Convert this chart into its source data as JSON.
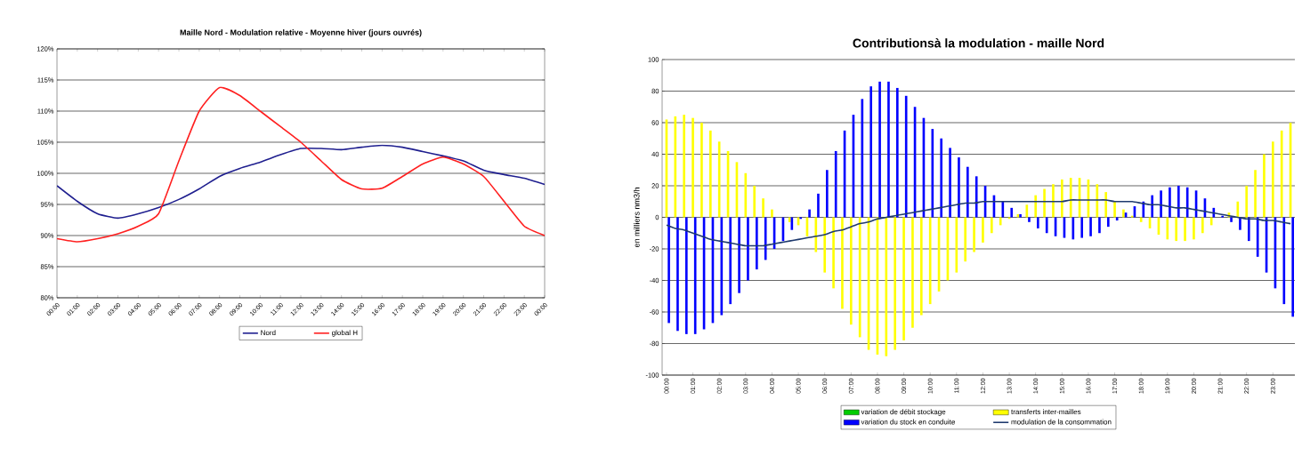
{
  "chart_data": [
    {
      "type": "line",
      "title": "Maille Nord - Modulation relative - Moyenne hiver (jours ouvrés)",
      "categories": [
        "00:00",
        "01:00",
        "02:00",
        "03:00",
        "04:00",
        "05:00",
        "06:00",
        "07:00",
        "08:00",
        "09:00",
        "10:00",
        "11:00",
        "12:00",
        "13:00",
        "14:00",
        "15:00",
        "16:00",
        "17:00",
        "18:00",
        "19:00",
        "20:00",
        "21:00",
        "22:00",
        "23:00",
        "00:00"
      ],
      "series": [
        {
          "name": "Nord",
          "color": "#1f1f8f",
          "values": [
            98,
            95.5,
            93.5,
            92.8,
            93.5,
            94.5,
            95.8,
            97.5,
            99.5,
            100.8,
            101.8,
            103,
            104,
            104,
            103.8,
            104.2,
            104.5,
            104.2,
            103.5,
            102.8,
            102,
            100.5,
            99.8,
            99.2,
            98.2
          ]
        },
        {
          "name": "global H",
          "color": "#ff2020",
          "values": [
            89.5,
            89,
            89.5,
            90.3,
            91.5,
            93.5,
            102,
            110,
            113.8,
            112.5,
            110,
            107.5,
            105,
            102,
            99,
            97.5,
            97.6,
            99.5,
            101.5,
            102.6,
            101.5,
            99.5,
            95.5,
            91.5,
            90
          ]
        }
      ],
      "ylim": [
        80,
        120
      ],
      "yticks": [
        {
          "value": 80,
          "label": "80%"
        },
        {
          "value": 85,
          "label": "85%"
        },
        {
          "value": 90,
          "label": "90%"
        },
        {
          "value": 95,
          "label": "95%"
        },
        {
          "value": 100,
          "label": "100%"
        },
        {
          "value": 105,
          "label": "105%"
        },
        {
          "value": 110,
          "label": "110%"
        },
        {
          "value": 115,
          "label": "115%"
        },
        {
          "value": 120,
          "label": "120%"
        }
      ],
      "grid": "y",
      "legend": "bottom"
    },
    {
      "type": "bar",
      "title": "Contributionsà la modulation - maille Nord",
      "ylabel": "en milliers nm3/h",
      "categories": [
        "00:00",
        null,
        null,
        "01:00",
        null,
        null,
        "02:00",
        null,
        null,
        "03:00",
        null,
        null,
        "04:00",
        null,
        null,
        "05:00",
        null,
        null,
        "06:00",
        null,
        null,
        "07:00",
        null,
        null,
        "08:00",
        null,
        null,
        "09:00",
        null,
        null,
        "10:00",
        null,
        null,
        "11:00",
        null,
        null,
        "12:00",
        null,
        null,
        "13:00",
        null,
        null,
        "14:00",
        null,
        null,
        "15:00",
        null,
        null,
        "16:00",
        null,
        null,
        "17:00",
        null,
        null,
        "18:00",
        null,
        null,
        "19:00",
        null,
        null,
        "20:00",
        null,
        null,
        "21:00",
        null,
        null,
        "22:00",
        null,
        null,
        "23:00",
        null,
        null
      ],
      "series": [
        {
          "name": "variation de débit stockage",
          "color": "#00cc00",
          "values": [
            0,
            0,
            0,
            0,
            0,
            0,
            0,
            0,
            0,
            0,
            0,
            0,
            0,
            0,
            0,
            0,
            0,
            0,
            0,
            0,
            0,
            0,
            0,
            0,
            0,
            0,
            0,
            0,
            0,
            0,
            0,
            0,
            0,
            0,
            0,
            0,
            0,
            0,
            0,
            0,
            0,
            0,
            0,
            0,
            0,
            0,
            0,
            0,
            0,
            0,
            0,
            0,
            0,
            0,
            0,
            0,
            0,
            0,
            0,
            0,
            0,
            0,
            0,
            0,
            0,
            0,
            0,
            0,
            0,
            0,
            0,
            0
          ]
        },
        {
          "name": "transferts inter-mailles",
          "color": "#ffff00",
          "values": [
            62,
            64,
            65,
            63,
            60,
            55,
            48,
            42,
            35,
            28,
            20,
            12,
            5,
            0,
            -3,
            -5,
            -12,
            -22,
            -35,
            -45,
            -58,
            -68,
            -76,
            -84,
            -87,
            -88,
            -84,
            -78,
            -70,
            -62,
            -55,
            -47,
            -40,
            -35,
            -28,
            -22,
            -16,
            -10,
            -5,
            -1,
            2,
            8,
            14,
            18,
            21,
            24,
            25,
            25,
            24,
            21,
            16,
            10,
            5,
            1,
            -3,
            -7,
            -11,
            -14,
            -15,
            -15,
            -14,
            -10,
            -5,
            0,
            3,
            10,
            20,
            30,
            40,
            48,
            55,
            60
          ]
        },
        {
          "name": "variation du stock en conduite",
          "color": "#0000ff",
          "values": [
            -67,
            -72,
            -74,
            -74,
            -71,
            -67,
            -62,
            -55,
            -48,
            -40,
            -33,
            -27,
            -20,
            -15,
            -8,
            -1,
            5,
            15,
            30,
            42,
            55,
            65,
            75,
            83,
            86,
            86,
            82,
            77,
            70,
            63,
            56,
            50,
            44,
            38,
            32,
            26,
            20,
            14,
            10,
            6,
            2,
            -3,
            -7,
            -10,
            -12,
            -13,
            -14,
            -13,
            -12,
            -10,
            -6,
            -2,
            3,
            7,
            10,
            14,
            17,
            19,
            20,
            19,
            17,
            12,
            6,
            1,
            -3,
            -8,
            -15,
            -25,
            -35,
            -45,
            -55,
            -63
          ]
        },
        {
          "name": "modulation de la consommation",
          "type": "line",
          "color": "#1f3a6e",
          "values": [
            -5,
            -7,
            -8,
            -10,
            -12,
            -14,
            -15,
            -16,
            -17,
            -18,
            -18,
            -18,
            -17,
            -16,
            -15,
            -14,
            -13,
            -12,
            -11,
            -9,
            -8,
            -6,
            -4,
            -3,
            -1,
            0,
            1,
            2,
            3,
            4,
            5,
            6,
            7,
            8,
            9,
            9,
            10,
            10,
            10,
            10,
            10,
            10,
            10,
            10,
            10,
            10,
            11,
            11,
            11,
            11,
            11,
            10,
            10,
            10,
            9,
            8,
            8,
            7,
            6,
            6,
            5,
            4,
            3,
            2,
            1,
            0,
            -1,
            -1,
            -2,
            -2,
            -3,
            -4
          ]
        }
      ],
      "ylim": [
        -100,
        100
      ],
      "yticks": [
        -100,
        -80,
        -60,
        -40,
        -20,
        0,
        20,
        40,
        60,
        80,
        100
      ],
      "grid": "y",
      "legend": "bottom"
    }
  ]
}
